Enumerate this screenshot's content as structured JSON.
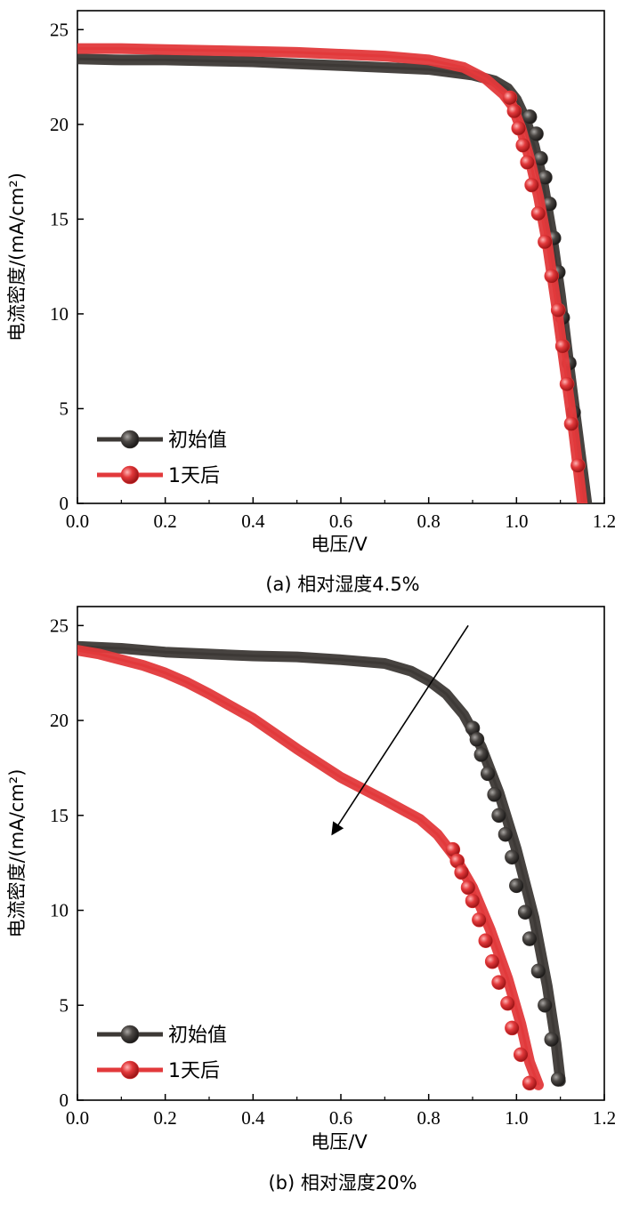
{
  "colors": {
    "initial": "#3d3936",
    "after": "#e2393b",
    "axis": "#000000"
  },
  "chart_data": [
    {
      "type": "line",
      "title": "",
      "caption": "(a) 相对湿度4.5%",
      "xlabel": "电压/V",
      "ylabel": "电流密度/(mA/cm²)",
      "xlim": [
        0,
        1.2
      ],
      "ylim": [
        0,
        26
      ],
      "xticks": [
        0.0,
        0.2,
        0.4,
        0.6,
        0.8,
        1.0,
        1.2
      ],
      "xtick_labels": [
        "0.0",
        "0.2",
        "0.4",
        "0.6",
        "0.8",
        "1.0",
        "1.2"
      ],
      "yticks": [
        0,
        5,
        10,
        15,
        20,
        25
      ],
      "ytick_labels": [
        "0",
        "5",
        "10",
        "15",
        "20",
        "25"
      ],
      "legend_position": "bottom-left",
      "series": [
        {
          "name": "初始值",
          "color_key": "initial",
          "points": [
            [
              0.0,
              23.45
            ],
            [
              0.1,
              23.4
            ],
            [
              0.2,
              23.4
            ],
            [
              0.3,
              23.35
            ],
            [
              0.4,
              23.3
            ],
            [
              0.5,
              23.2
            ],
            [
              0.6,
              23.1
            ],
            [
              0.7,
              23.0
            ],
            [
              0.8,
              22.9
            ],
            [
              0.9,
              22.6
            ],
            [
              0.95,
              22.3
            ],
            [
              0.98,
              21.9
            ],
            [
              1.0,
              21.3
            ],
            [
              1.02,
              20.3
            ],
            [
              1.04,
              18.9
            ],
            [
              1.06,
              17.0
            ],
            [
              1.08,
              14.3
            ],
            [
              1.1,
              11.0
            ],
            [
              1.12,
              7.2
            ],
            [
              1.14,
              3.6
            ],
            [
              1.16,
              0.0
            ]
          ],
          "markers": [
            [
              1.03,
              20.4
            ],
            [
              1.045,
              19.5
            ],
            [
              1.055,
              18.2
            ],
            [
              1.065,
              17.2
            ],
            [
              1.075,
              15.8
            ],
            [
              1.085,
              14.0
            ],
            [
              1.095,
              12.2
            ],
            [
              1.105,
              9.8
            ],
            [
              1.12,
              7.4
            ],
            [
              1.13,
              4.8
            ]
          ]
        },
        {
          "name": "1天后",
          "color_key": "after",
          "points": [
            [
              0.0,
              24.0
            ],
            [
              0.1,
              24.0
            ],
            [
              0.2,
              23.95
            ],
            [
              0.3,
              23.9
            ],
            [
              0.4,
              23.85
            ],
            [
              0.5,
              23.8
            ],
            [
              0.6,
              23.7
            ],
            [
              0.7,
              23.6
            ],
            [
              0.8,
              23.4
            ],
            [
              0.88,
              23.0
            ],
            [
              0.93,
              22.4
            ],
            [
              0.97,
              21.6
            ],
            [
              0.99,
              21.0
            ],
            [
              1.01,
              19.8
            ],
            [
              1.03,
              18.2
            ],
            [
              1.05,
              16.2
            ],
            [
              1.07,
              13.7
            ],
            [
              1.09,
              10.6
            ],
            [
              1.11,
              7.2
            ],
            [
              1.13,
              3.8
            ],
            [
              1.15,
              0.0
            ]
          ],
          "markers": [
            [
              0.985,
              21.4
            ],
            [
              0.995,
              20.7
            ],
            [
              1.005,
              19.8
            ],
            [
              1.015,
              18.9
            ],
            [
              1.025,
              18.0
            ],
            [
              1.035,
              16.8
            ],
            [
              1.05,
              15.3
            ],
            [
              1.065,
              13.8
            ],
            [
              1.08,
              12.0
            ],
            [
              1.095,
              10.2
            ],
            [
              1.105,
              8.3
            ],
            [
              1.115,
              6.3
            ],
            [
              1.125,
              4.2
            ],
            [
              1.14,
              2.0
            ]
          ]
        }
      ]
    },
    {
      "type": "line",
      "title": "",
      "caption": "(b) 相对湿度20%",
      "xlabel": "电压/V",
      "ylabel": "电流密度/(mA/cm²)",
      "xlim": [
        0,
        1.2
      ],
      "ylim": [
        0,
        26
      ],
      "xticks": [
        0.0,
        0.2,
        0.4,
        0.6,
        0.8,
        1.0,
        1.2
      ],
      "xtick_labels": [
        "0.0",
        "0.2",
        "0.4",
        "0.6",
        "0.8",
        "1.0",
        "1.2"
      ],
      "yticks": [
        0,
        5,
        10,
        15,
        20,
        25
      ],
      "ytick_labels": [
        "0",
        "5",
        "10",
        "15",
        "20",
        "25"
      ],
      "legend_position": "bottom-left",
      "annotation": {
        "type": "arrow",
        "from": [
          0.89,
          25.0
        ],
        "to": [
          0.58,
          14.0
        ]
      },
      "series": [
        {
          "name": "初始值",
          "color_key": "initial",
          "points": [
            [
              0.0,
              23.9
            ],
            [
              0.1,
              23.8
            ],
            [
              0.2,
              23.6
            ],
            [
              0.3,
              23.5
            ],
            [
              0.4,
              23.4
            ],
            [
              0.5,
              23.35
            ],
            [
              0.6,
              23.2
            ],
            [
              0.7,
              23.0
            ],
            [
              0.76,
              22.6
            ],
            [
              0.8,
              22.1
            ],
            [
              0.84,
              21.4
            ],
            [
              0.88,
              20.3
            ],
            [
              0.92,
              18.6
            ],
            [
              0.96,
              16.2
            ],
            [
              1.0,
              13.2
            ],
            [
              1.04,
              9.6
            ],
            [
              1.07,
              6.0
            ],
            [
              1.09,
              3.0
            ],
            [
              1.1,
              1.0
            ]
          ],
          "markers": [
            [
              0.9,
              19.6
            ],
            [
              0.91,
              19.0
            ],
            [
              0.92,
              18.2
            ],
            [
              0.935,
              17.2
            ],
            [
              0.95,
              16.1
            ],
            [
              0.96,
              15.0
            ],
            [
              0.975,
              14.0
            ],
            [
              0.99,
              12.8
            ],
            [
              1.0,
              11.3
            ],
            [
              1.02,
              9.9
            ],
            [
              1.03,
              8.5
            ],
            [
              1.05,
              6.8
            ],
            [
              1.065,
              5.0
            ],
            [
              1.08,
              3.2
            ],
            [
              1.095,
              1.1
            ]
          ]
        },
        {
          "name": "1天后",
          "color_key": "after",
          "points": [
            [
              0.0,
              23.7
            ],
            [
              0.05,
              23.5
            ],
            [
              0.1,
              23.2
            ],
            [
              0.15,
              22.9
            ],
            [
              0.2,
              22.5
            ],
            [
              0.25,
              22.0
            ],
            [
              0.3,
              21.4
            ],
            [
              0.4,
              20.1
            ],
            [
              0.5,
              18.5
            ],
            [
              0.6,
              17.0
            ],
            [
              0.7,
              15.8
            ],
            [
              0.78,
              14.8
            ],
            [
              0.82,
              14.0
            ],
            [
              0.86,
              12.8
            ],
            [
              0.9,
              11.2
            ],
            [
              0.94,
              9.0
            ],
            [
              0.98,
              6.4
            ],
            [
              1.01,
              4.0
            ],
            [
              1.03,
              2.0
            ],
            [
              1.05,
              0.8
            ]
          ],
          "markers": [
            [
              0.855,
              13.2
            ],
            [
              0.865,
              12.6
            ],
            [
              0.875,
              12.0
            ],
            [
              0.89,
              11.2
            ],
            [
              0.9,
              10.5
            ],
            [
              0.915,
              9.5
            ],
            [
              0.93,
              8.4
            ],
            [
              0.945,
              7.3
            ],
            [
              0.96,
              6.2
            ],
            [
              0.98,
              5.1
            ],
            [
              0.99,
              3.8
            ],
            [
              1.01,
              2.4
            ],
            [
              1.03,
              0.9
            ]
          ]
        }
      ]
    }
  ]
}
